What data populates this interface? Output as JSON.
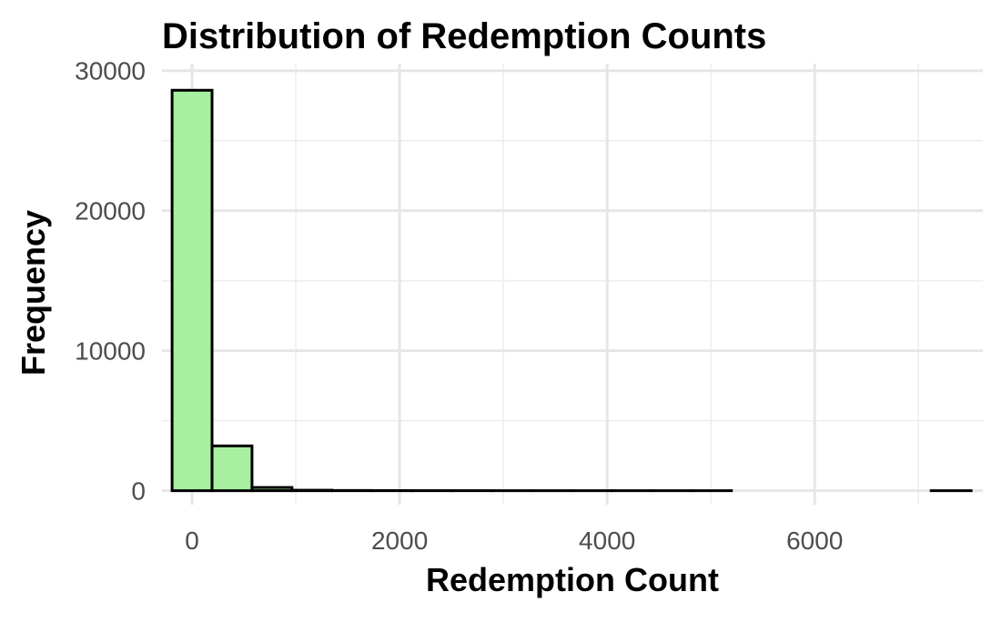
{
  "chart_data": {
    "type": "histogram",
    "title": "Distribution of Redemption Counts",
    "xlabel": "Redemption Count",
    "ylabel": "Frequency",
    "xlim": [
      -290,
      7620
    ],
    "ylim": [
      -1000,
      30500
    ],
    "x_ticks": [
      0,
      2000,
      4000,
      6000
    ],
    "y_ticks": [
      0,
      10000,
      20000,
      30000
    ],
    "x_minor_ticks": [
      1000,
      3000,
      5000,
      7000
    ],
    "y_minor_ticks": [
      5000,
      15000,
      25000
    ],
    "x_tick_labels": [
      "0",
      "2000",
      "4000",
      "6000"
    ],
    "y_tick_labels": [
      "0",
      "10000",
      "20000",
      "30000"
    ],
    "bin_width": 385,
    "bin_start": -192.5,
    "values": [
      28600,
      3200,
      230,
      35,
      15,
      8,
      5,
      3,
      2,
      2,
      1,
      1,
      1,
      1,
      0,
      0,
      0,
      0,
      0,
      1
    ],
    "bar_fill": "#a6f0a0",
    "bar_outline": "#000000",
    "grid": true,
    "legend": "none"
  }
}
